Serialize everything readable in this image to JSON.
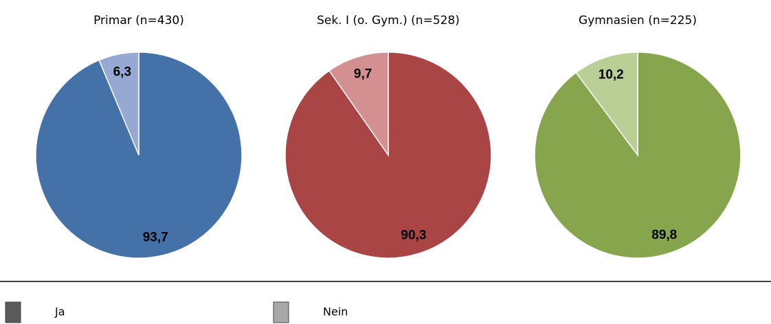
{
  "chart_data": [
    {
      "type": "pie",
      "title": "Primar (n=430)",
      "values": [
        93.7,
        6.3
      ],
      "value_labels": [
        "93,7",
        "6,3"
      ],
      "colors": [
        "#4472a8",
        "#95a9d2"
      ]
    },
    {
      "type": "pie",
      "title": "Sek. I (o. Gym.) (n=528)",
      "values": [
        90.3,
        9.7
      ],
      "value_labels": [
        "90,3",
        "9,7"
      ],
      "colors": [
        "#a94545",
        "#d49090"
      ]
    },
    {
      "type": "pie",
      "title": "Gymnasien (n=225)",
      "values": [
        89.8,
        10.2
      ],
      "value_labels": [
        "89,8",
        "10,2"
      ],
      "colors": [
        "#87a54c",
        "#b9cf95"
      ]
    }
  ],
  "legend": {
    "items": [
      {
        "label": "Ja",
        "color": "#5a5a5a"
      },
      {
        "label": "Nein",
        "color": "#a8a8a8"
      }
    ]
  }
}
